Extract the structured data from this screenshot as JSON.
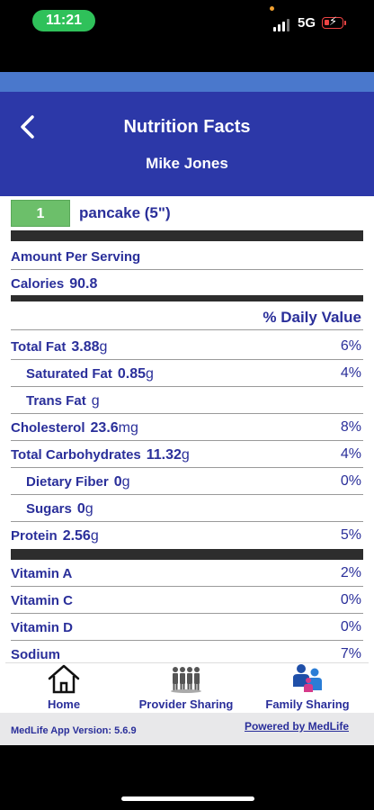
{
  "status_bar": {
    "time": "11:21",
    "network": "5G"
  },
  "header": {
    "back_icon": "chevron-left-icon",
    "title": "Nutrition Facts",
    "subtitle": "Mike Jones"
  },
  "serving": {
    "quantity": "1",
    "unit": "pancake (5\")"
  },
  "labels": {
    "amount_per_serving": "Amount Per Serving",
    "calories_label": "Calories",
    "calories_value": "90.8",
    "daily_value_header": "% Daily Value"
  },
  "nutrients": [
    {
      "label": "Total Fat",
      "value": "3.88",
      "unit": "g",
      "pct": "6%"
    },
    {
      "label": "Saturated Fat",
      "value": "0.85",
      "unit": "g",
      "pct": "4%"
    },
    {
      "label": "Trans Fat",
      "value": "",
      "unit": "g",
      "pct": ""
    },
    {
      "label": "Cholesterol",
      "value": "23.6",
      "unit": "mg",
      "pct": "8%"
    },
    {
      "label": "Total Carbohydrates",
      "value": "11.32",
      "unit": "g",
      "pct": "4%"
    },
    {
      "label": "Dietary Fiber",
      "value": "0",
      "unit": "g",
      "pct": "0%"
    },
    {
      "label": "Sugars",
      "value": "0",
      "unit": "g",
      "pct": ""
    },
    {
      "label": "Protein",
      "value": "2.56",
      "unit": "g",
      "pct": "5%"
    }
  ],
  "vitamins": [
    {
      "label": "Vitamin A",
      "pct": "2%"
    },
    {
      "label": "Vitamin C",
      "pct": "0%"
    },
    {
      "label": "Vitamin D",
      "pct": "0%"
    },
    {
      "label": "Sodium",
      "pct": "7%"
    }
  ],
  "bottom_nav": [
    {
      "label": "Home",
      "icon": "home-icon"
    },
    {
      "label": "Provider Sharing",
      "icon": "provider-group-icon"
    },
    {
      "label": "Family Sharing",
      "icon": "family-group-icon"
    }
  ],
  "footer": {
    "version": "MedLife App Version: 5.6.9",
    "powered_by": "Powered by MedLife"
  },
  "colors": {
    "header": "#2c38a8",
    "accent_text": "#2a2f9a",
    "quantity_box": "#6cbf6a",
    "time_pill": "#2fc15a"
  }
}
